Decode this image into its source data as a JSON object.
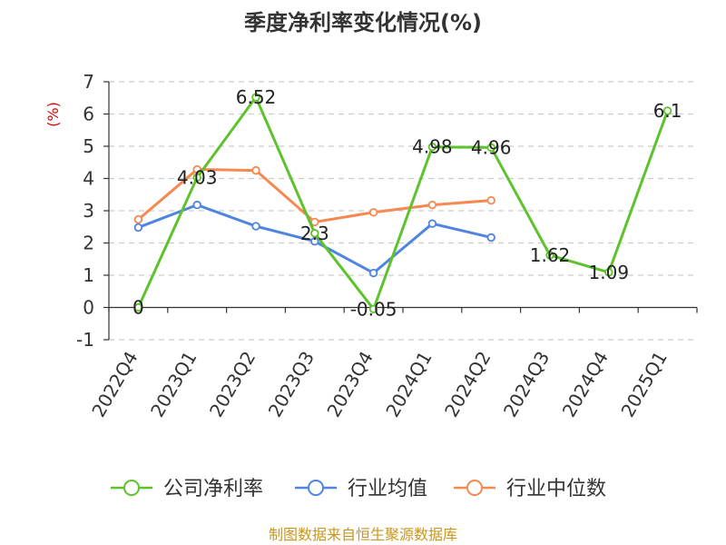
{
  "chart_data": {
    "type": "line",
    "title": "季度净利率变化情况(%)",
    "ylabel": "(%)",
    "xlabel": "",
    "categories": [
      "2022Q4",
      "2023Q1",
      "2023Q2",
      "2023Q3",
      "2023Q4",
      "2024Q1",
      "2024Q2",
      "2024Q3",
      "2024Q4",
      "2025Q1"
    ],
    "ylim": [
      -1,
      7
    ],
    "yticks": [
      -1,
      0,
      1,
      2,
      3,
      4,
      5,
      6,
      7
    ],
    "grid": true,
    "legend_position": "bottom",
    "series": [
      {
        "name": "公司净利率",
        "color": "#5ec22d",
        "values": [
          0,
          4.03,
          6.52,
          2.3,
          -0.05,
          4.98,
          4.96,
          1.62,
          1.09,
          6.1
        ],
        "labels": [
          "0",
          "4.03",
          "6.52",
          "2.3",
          "-0.05",
          "4.98",
          "4.96",
          "1.62",
          "1.09",
          "6.1"
        ],
        "show_labels": true
      },
      {
        "name": "行业均值",
        "color": "#4f84e0",
        "values": [
          2.48,
          3.18,
          2.52,
          2.05,
          1.07,
          2.6,
          2.17,
          null,
          null,
          null
        ],
        "show_labels": false
      },
      {
        "name": "行业中位数",
        "color": "#f5894f",
        "values": [
          2.73,
          4.28,
          4.25,
          2.65,
          2.95,
          3.18,
          3.32,
          null,
          null,
          null
        ],
        "show_labels": false
      }
    ]
  },
  "source": "制图数据来自恒生聚源数据库"
}
